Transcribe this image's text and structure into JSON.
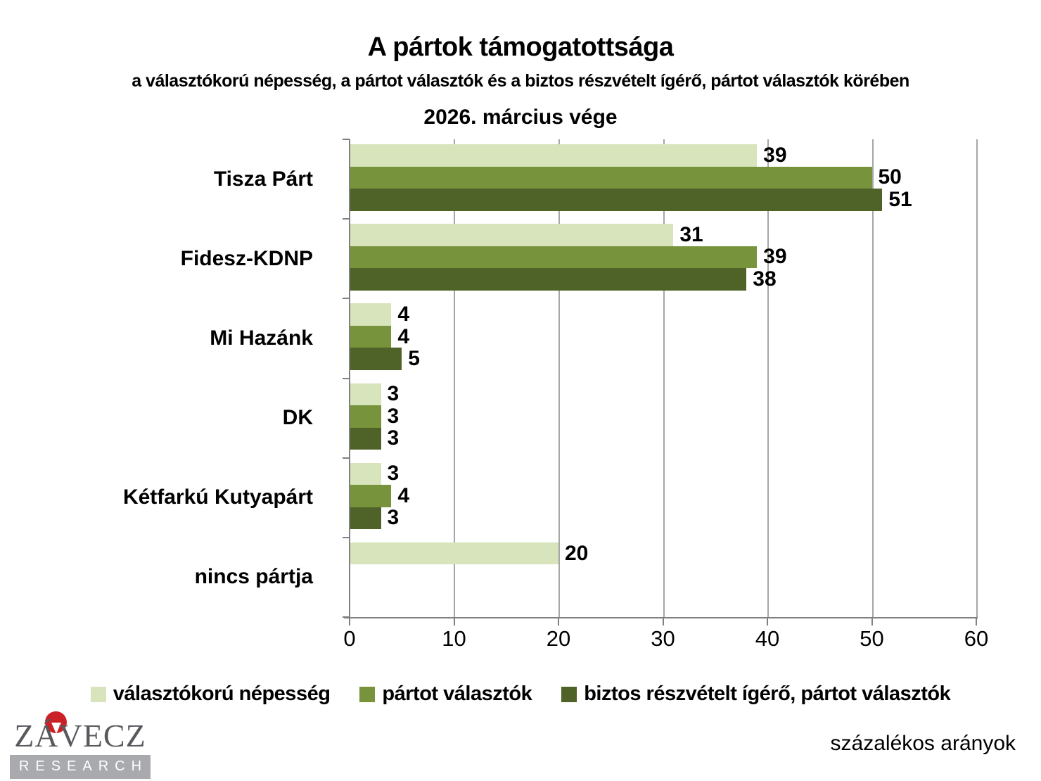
{
  "header": {
    "title": "A pártok támogatottsága",
    "subtitle": "a választókorú népesség, a pártot választók és a biztos részvételt ígérő, pártot választók körében",
    "period": "2026. március vége"
  },
  "chart_data": {
    "type": "bar",
    "orientation": "horizontal",
    "title": "A pártok támogatottsága",
    "categories": [
      "Tisza Párt",
      "Fidesz-KDNP",
      "Mi Hazánk",
      "DK",
      "Kétfarkú Kutyapárt",
      "nincs pártja"
    ],
    "series": [
      {
        "name": "választókorú népesség",
        "color": "#d7e4bc",
        "values": [
          39,
          31,
          4,
          3,
          3,
          20
        ]
      },
      {
        "name": "pártot választók",
        "color": "#77933c",
        "values": [
          50,
          39,
          4,
          3,
          4,
          null
        ]
      },
      {
        "name": "biztos részvételt ígérő, pártot választók",
        "color": "#4f6228",
        "values": [
          51,
          38,
          5,
          3,
          3,
          null
        ]
      }
    ],
    "xlim": [
      0,
      60
    ],
    "xticks": [
      0,
      10,
      20,
      30,
      40,
      50,
      60
    ],
    "grid": true,
    "value_labels": true,
    "legend_position": "bottom",
    "xlabel": "",
    "ylabel": ""
  },
  "footer": {
    "note": "százalékos arányok",
    "logo_line1": "ZÁVECZ",
    "logo_line2": "RESEARCH"
  },
  "colors": {
    "axis": "#808080",
    "gridline": "#a6a6a6",
    "logo_text": "#57595d",
    "logo_bar": "#a8aaad",
    "logo_red": "#cb2026"
  }
}
